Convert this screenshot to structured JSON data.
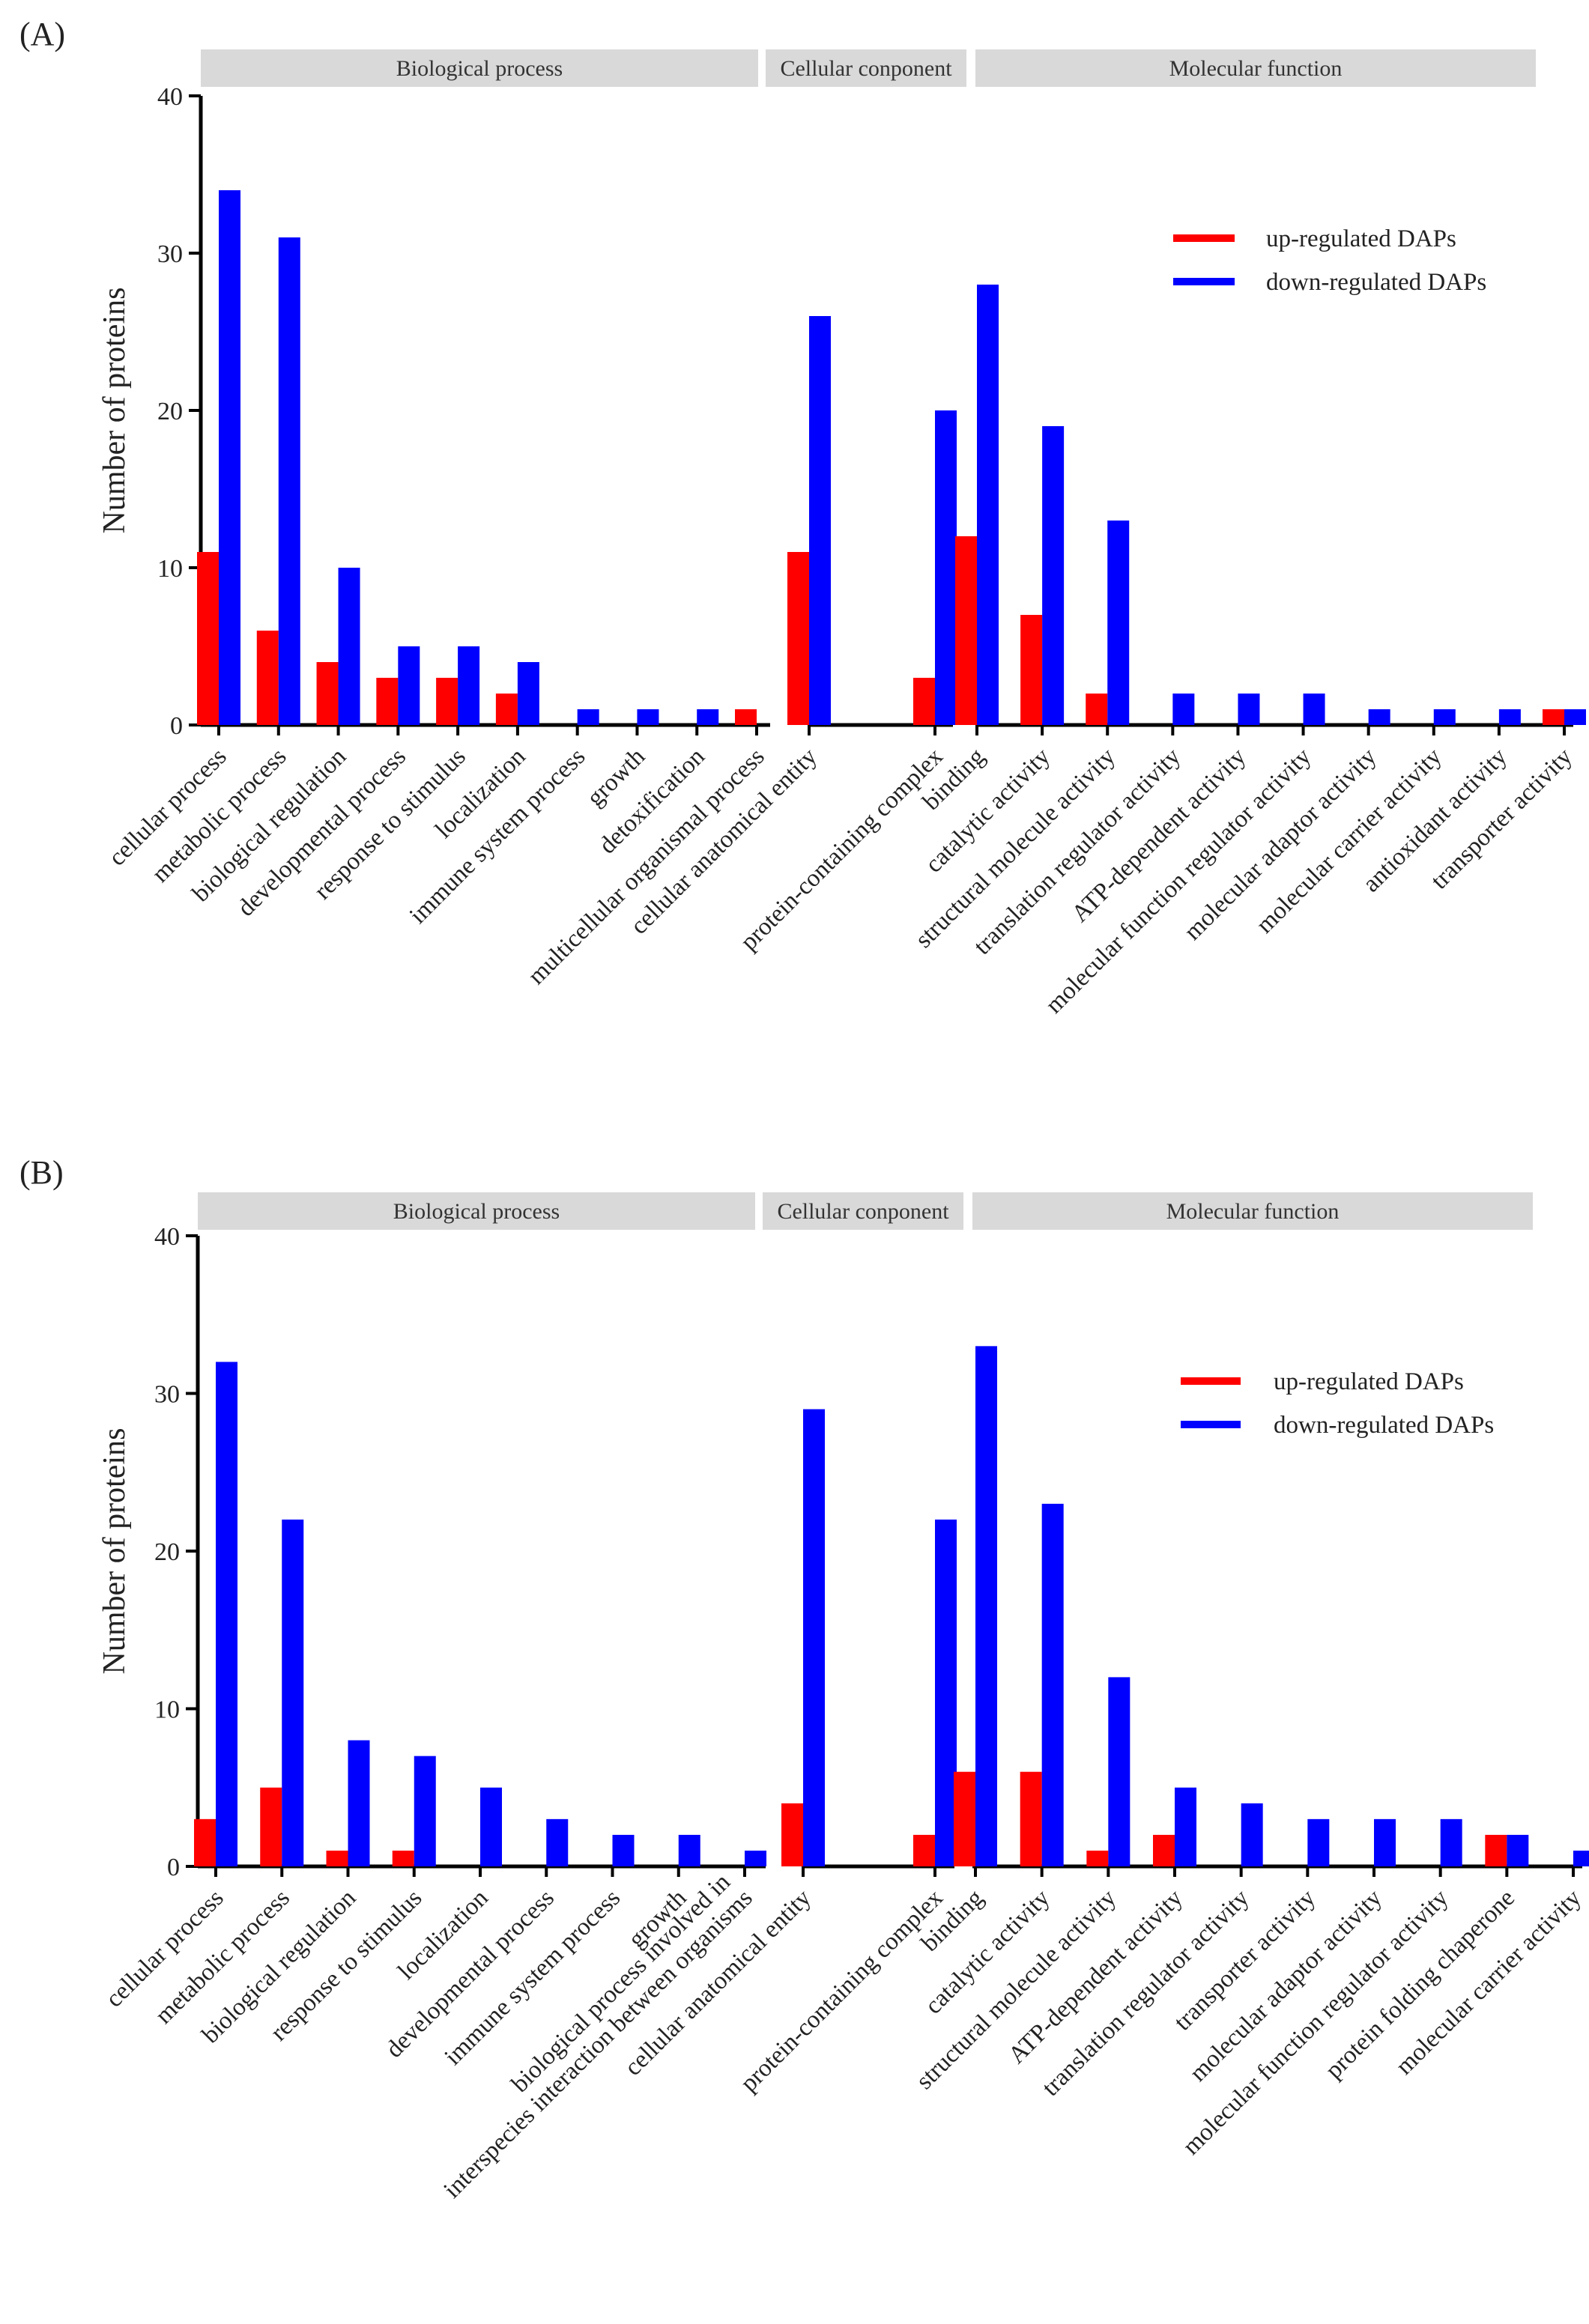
{
  "chart_data": [
    {
      "type": "bar",
      "panel_label": "(A)",
      "ylabel": "Number of proteins",
      "ylim": [
        0,
        40
      ],
      "yticks": [
        0,
        10,
        20,
        30,
        40
      ],
      "legend": {
        "position": "top-right",
        "entries": [
          "up-regulated DAPs",
          "down-regulated DAPs"
        ]
      },
      "series_colors": {
        "up": "#ff0000",
        "down": "#0000ff"
      },
      "groups": [
        {
          "name": "Biological process",
          "categories": [
            "cellular process",
            "metabolic process",
            "biological regulation",
            "developmental process",
            "response to stimulus",
            "localization",
            "immune system process",
            "growth",
            "detoxification",
            "multicellular organismal process"
          ],
          "up": [
            11,
            6,
            4,
            3,
            3,
            2,
            0,
            0,
            0,
            1
          ],
          "down": [
            34,
            31,
            10,
            5,
            5,
            4,
            1,
            1,
            1,
            0
          ]
        },
        {
          "name": "Cellular conponent",
          "categories": [
            "cellular anatomical entity",
            "protein-containing complex"
          ],
          "up": [
            11,
            3
          ],
          "down": [
            26,
            20
          ]
        },
        {
          "name": "Molecular function",
          "categories": [
            "binding",
            "catalytic activity",
            "structural molecule activity",
            "translation regulator activity",
            "ATP-dependent activity",
            "molecular function regulator activity",
            "molecular adaptor activity",
            "molecular carrier activity",
            "antioxidant activity",
            "transporter activity"
          ],
          "up": [
            12,
            7,
            2,
            0,
            0,
            0,
            0,
            0,
            0,
            1
          ],
          "down": [
            28,
            19,
            13,
            2,
            2,
            2,
            1,
            1,
            1,
            1
          ]
        }
      ]
    },
    {
      "type": "bar",
      "panel_label": "(B)",
      "ylabel": "Number of proteins",
      "ylim": [
        0,
        40
      ],
      "yticks": [
        0,
        10,
        20,
        30,
        40
      ],
      "legend": {
        "position": "top-right",
        "entries": [
          "up-regulated DAPs",
          "down-regulated DAPs"
        ]
      },
      "series_colors": {
        "up": "#ff0000",
        "down": "#0000ff"
      },
      "groups": [
        {
          "name": "Biological process",
          "categories": [
            "cellular process",
            "metabolic process",
            "biological regulation",
            "response to stimulus",
            "localization",
            "developmental process",
            "immune system process",
            "growth",
            "biological process involved in|interspecies interaction between organisms"
          ],
          "up": [
            3,
            5,
            1,
            1,
            0,
            0,
            0,
            0,
            0
          ],
          "down": [
            32,
            22,
            8,
            7,
            5,
            3,
            2,
            2,
            1
          ]
        },
        {
          "name": "Cellular conponent",
          "categories": [
            "cellular anatomical entity",
            "protein-containing complex"
          ],
          "up": [
            4,
            2
          ],
          "down": [
            29,
            22
          ]
        },
        {
          "name": "Molecular function",
          "categories": [
            "binding",
            "catalytic activity",
            "structural molecule activity",
            "ATP-dependent activity",
            "translation regulator activity",
            "transporter activity",
            "molecular adaptor activity",
            "molecular function regulator activity",
            "protein folding chaperone",
            "molecular carrier activity"
          ],
          "up": [
            6,
            6,
            1,
            2,
            0,
            0,
            0,
            0,
            2,
            0
          ],
          "down": [
            33,
            23,
            12,
            5,
            4,
            3,
            3,
            3,
            2,
            1
          ]
        }
      ]
    }
  ]
}
